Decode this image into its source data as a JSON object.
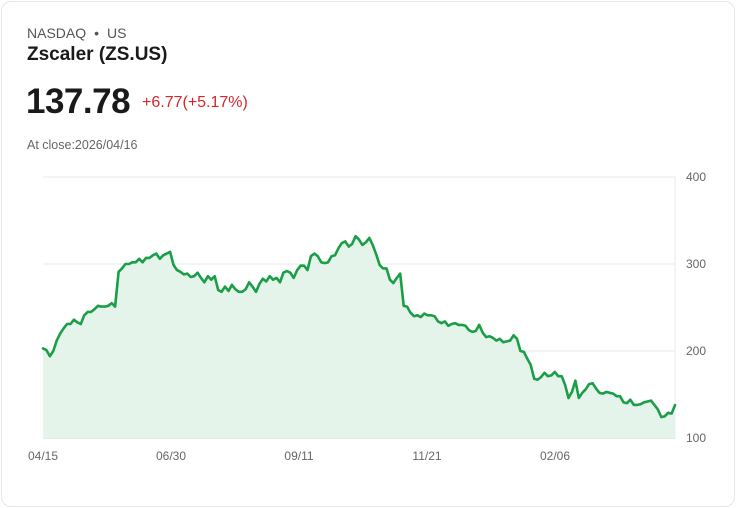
{
  "header": {
    "exchange": "NASDAQ",
    "separator": "•",
    "region": "US",
    "name": "Zscaler (ZS.US)",
    "price": "137.78",
    "change": "+6.77(+5.17%)",
    "close_label": "At close:2026/04/16"
  },
  "colors": {
    "line": "#1a9e48",
    "fill": "#e5f4ea",
    "change": "#d6262b"
  },
  "chart_data": {
    "type": "area",
    "title": "Zscaler (ZS.US)",
    "xlabel": "",
    "ylabel": "",
    "x_ticks": [
      "04/15",
      "06/30",
      "09/11",
      "11/21",
      "02/06"
    ],
    "y_ticks": [
      "400",
      "300",
      "200",
      "100"
    ],
    "ylim": [
      100,
      400
    ],
    "grid": true,
    "y_axis_position": "right",
    "values": [
      203,
      201,
      194,
      200,
      212,
      220,
      226,
      231,
      231,
      236,
      233,
      231,
      241,
      245,
      245,
      248,
      252,
      251,
      251,
      252,
      255,
      251,
      291,
      295,
      300,
      300,
      302,
      302,
      306,
      302,
      307,
      307,
      310,
      312,
      306,
      310,
      312,
      314,
      299,
      293,
      291,
      288,
      289,
      285,
      286,
      290,
      284,
      279,
      286,
      282,
      286,
      270,
      268,
      274,
      269,
      276,
      271,
      268,
      268,
      271,
      279,
      274,
      268,
      277,
      283,
      280,
      286,
      282,
      284,
      279,
      290,
      292,
      290,
      284,
      293,
      298,
      298,
      293,
      309,
      312,
      309,
      302,
      301,
      302,
      309,
      310,
      318,
      324,
      326,
      320,
      323,
      332,
      328,
      322,
      325,
      330,
      322,
      311,
      299,
      295,
      295,
      282,
      278,
      284,
      289,
      252,
      251,
      244,
      240,
      241,
      239,
      243,
      241,
      241,
      240,
      234,
      232,
      234,
      229,
      231,
      232,
      230,
      230,
      229,
      224,
      222,
      223,
      230,
      221,
      216,
      217,
      215,
      212,
      214,
      210,
      211,
      212,
      218,
      214,
      200,
      199,
      191,
      184,
      168,
      167,
      170,
      175,
      171,
      172,
      176,
      171,
      171,
      161,
      146,
      153,
      166,
      146,
      152,
      156,
      162,
      163,
      157,
      152,
      151,
      153,
      152,
      151,
      148,
      148,
      141,
      140,
      144,
      138,
      138,
      139,
      141,
      142,
      143,
      138,
      133,
      124,
      125,
      129,
      128,
      137.78
    ]
  }
}
